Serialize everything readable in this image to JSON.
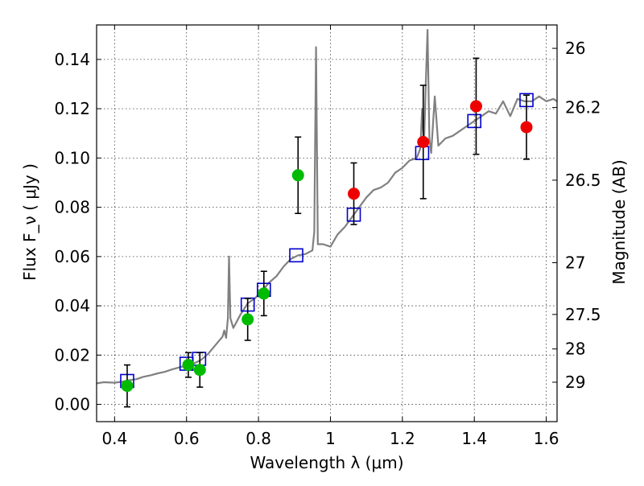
{
  "chart_data": {
    "type": "scatter",
    "title": "",
    "xlabel": "Wavelength  λ (μm)",
    "ylabel": "Flux  F_ν  ( μJy )",
    "y2label": "Magnitude (AB)",
    "xlim": [
      0.35,
      1.63
    ],
    "ylim": [
      -0.007,
      0.154
    ],
    "grid": true,
    "x_ticks": [
      {
        "value": 0.4,
        "label": "0.4"
      },
      {
        "value": 0.6,
        "label": "0.6"
      },
      {
        "value": 0.8,
        "label": "0.8"
      },
      {
        "value": 1.0,
        "label": "1"
      },
      {
        "value": 1.2,
        "label": "1.2"
      },
      {
        "value": 1.4,
        "label": "1.4"
      },
      {
        "value": 1.6,
        "label": "1.6"
      }
    ],
    "y_ticks": [
      {
        "value": 0.0,
        "label": "0.00"
      },
      {
        "value": 0.02,
        "label": "0.02"
      },
      {
        "value": 0.04,
        "label": "0.04"
      },
      {
        "value": 0.06,
        "label": "0.06"
      },
      {
        "value": 0.08,
        "label": "0.08"
      },
      {
        "value": 0.1,
        "label": "0.10"
      },
      {
        "value": 0.12,
        "label": "0.12"
      },
      {
        "value": 0.14,
        "label": "0.14"
      }
    ],
    "y2_ticks": [
      {
        "flux": 0.1445,
        "label": "26"
      },
      {
        "flux": 0.1205,
        "label": "26.2"
      },
      {
        "flux": 0.091,
        "label": "26.5"
      },
      {
        "flux": 0.0575,
        "label": "27"
      },
      {
        "flux": 0.0365,
        "label": "27.5"
      },
      {
        "flux": 0.0225,
        "label": "28"
      },
      {
        "flux": 0.009,
        "label": "29"
      }
    ],
    "series": [
      {
        "kind": "line",
        "color": "#808080",
        "points": [
          [
            0.35,
            0.0085
          ],
          [
            0.37,
            0.009
          ],
          [
            0.4,
            0.0088
          ],
          [
            0.42,
            0.0092
          ],
          [
            0.44,
            0.0098
          ],
          [
            0.46,
            0.0102
          ],
          [
            0.48,
            0.0112
          ],
          [
            0.5,
            0.0118
          ],
          [
            0.52,
            0.0126
          ],
          [
            0.54,
            0.0132
          ],
          [
            0.56,
            0.0142
          ],
          [
            0.58,
            0.015
          ],
          [
            0.6,
            0.0158
          ],
          [
            0.62,
            0.0166
          ],
          [
            0.64,
            0.018
          ],
          [
            0.66,
            0.0205
          ],
          [
            0.68,
            0.024
          ],
          [
            0.7,
            0.0275
          ],
          [
            0.705,
            0.03
          ],
          [
            0.71,
            0.027
          ],
          [
            0.715,
            0.035
          ],
          [
            0.718,
            0.06
          ],
          [
            0.722,
            0.035
          ],
          [
            0.73,
            0.031
          ],
          [
            0.75,
            0.0365
          ],
          [
            0.77,
            0.041
          ],
          [
            0.79,
            0.043
          ],
          [
            0.81,
            0.046
          ],
          [
            0.83,
            0.0495
          ],
          [
            0.85,
            0.052
          ],
          [
            0.87,
            0.056
          ],
          [
            0.89,
            0.059
          ],
          [
            0.91,
            0.0605
          ],
          [
            0.93,
            0.061
          ],
          [
            0.95,
            0.0625
          ],
          [
            0.955,
            0.07
          ],
          [
            0.96,
            0.145
          ],
          [
            0.965,
            0.065
          ],
          [
            0.98,
            0.065
          ],
          [
            1.0,
            0.064
          ],
          [
            1.02,
            0.069
          ],
          [
            1.04,
            0.072
          ],
          [
            1.06,
            0.076
          ],
          [
            1.08,
            0.08
          ],
          [
            1.1,
            0.084
          ],
          [
            1.12,
            0.087
          ],
          [
            1.14,
            0.088
          ],
          [
            1.16,
            0.09
          ],
          [
            1.18,
            0.094
          ],
          [
            1.2,
            0.096
          ],
          [
            1.22,
            0.099
          ],
          [
            1.24,
            0.1
          ],
          [
            1.25,
            0.104
          ],
          [
            1.255,
            0.12
          ],
          [
            1.26,
            0.105
          ],
          [
            1.265,
            0.13
          ],
          [
            1.27,
            0.152
          ],
          [
            1.275,
            0.108
          ],
          [
            1.28,
            0.102
          ],
          [
            1.29,
            0.125
          ],
          [
            1.3,
            0.105
          ],
          [
            1.32,
            0.108
          ],
          [
            1.34,
            0.109
          ],
          [
            1.36,
            0.111
          ],
          [
            1.38,
            0.113
          ],
          [
            1.4,
            0.115
          ],
          [
            1.42,
            0.117
          ],
          [
            1.44,
            0.119
          ],
          [
            1.46,
            0.118
          ],
          [
            1.48,
            0.123
          ],
          [
            1.5,
            0.117
          ],
          [
            1.52,
            0.124
          ],
          [
            1.54,
            0.123
          ],
          [
            1.56,
            0.123
          ],
          [
            1.58,
            0.125
          ],
          [
            1.6,
            0.123
          ],
          [
            1.62,
            0.124
          ],
          [
            1.63,
            0.123
          ]
        ]
      },
      {
        "kind": "open-squares",
        "color": "#0000cc",
        "x": [
          0.435,
          0.6,
          0.635,
          0.77,
          0.815,
          0.905,
          1.065,
          1.255,
          1.4,
          1.545
        ],
        "y": [
          0.0095,
          0.0165,
          0.0185,
          0.0405,
          0.0465,
          0.0605,
          0.077,
          0.102,
          0.115,
          0.1235
        ]
      },
      {
        "kind": "dots-with-error",
        "color": "#00bb00",
        "x": [
          0.435,
          0.605,
          0.637,
          0.77,
          0.815,
          0.91
        ],
        "y": [
          0.0075,
          0.016,
          0.014,
          0.0345,
          0.045,
          0.093
        ],
        "err": [
          0.0085,
          0.005,
          0.007,
          0.0085,
          0.009,
          0.0155
        ]
      },
      {
        "kind": "dots-with-error",
        "color": "#ee0000",
        "x": [
          1.065,
          1.258,
          1.405,
          1.545
        ],
        "y": [
          0.0855,
          0.1065,
          0.121,
          0.1125
        ],
        "err": [
          0.0125,
          0.023,
          0.0195,
          0.013
        ]
      }
    ]
  }
}
